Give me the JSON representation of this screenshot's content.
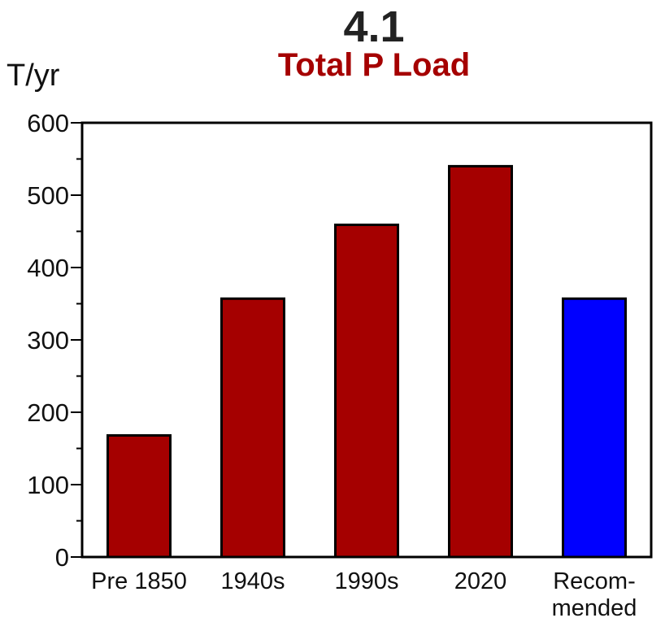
{
  "chart_data": {
    "type": "bar",
    "figure_number": "4.1",
    "title": "Total P Load",
    "ylabel": "T/yr",
    "ylim": [
      0,
      600
    ],
    "yticks": [
      0,
      100,
      200,
      300,
      400,
      500,
      600
    ],
    "categories": [
      [
        "Pre 1850"
      ],
      [
        "1940s"
      ],
      [
        "1990s"
      ],
      [
        "2020"
      ],
      [
        "Recom-",
        "mended"
      ]
    ],
    "values": [
      168,
      357,
      459,
      540,
      357
    ],
    "bar_colors": [
      "#a50000",
      "#a50000",
      "#a50000",
      "#a50000",
      "#0000ff"
    ],
    "title_color": "#a50000",
    "grid": false,
    "legend": "none"
  }
}
